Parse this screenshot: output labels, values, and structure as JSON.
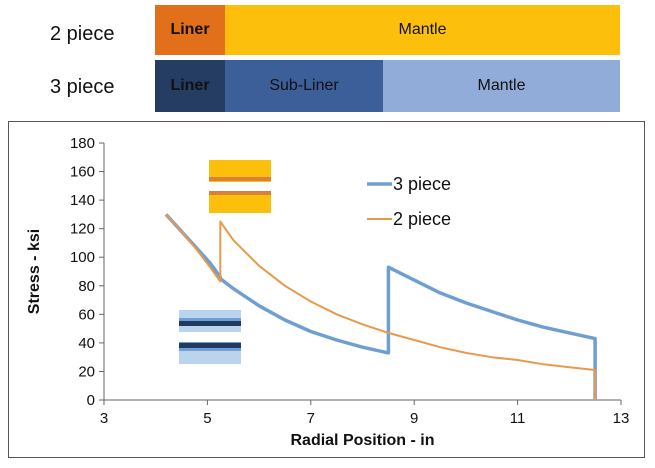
{
  "diagram": {
    "rows": [
      {
        "label": "2 piece",
        "segments": [
          {
            "label": "Liner",
            "color": "#e2701a",
            "bold": true
          },
          {
            "label": "Mantle",
            "color": "#fbbf0c",
            "bold": false
          }
        ]
      },
      {
        "label": "3 piece",
        "segments": [
          {
            "label": "Liner",
            "color": "#253d63",
            "bold": true
          },
          {
            "label": "Sub-Liner",
            "color": "#3d5f99",
            "bold": false
          },
          {
            "label": "Mantle",
            "color": "#91acd8",
            "bold": false
          }
        ]
      }
    ]
  },
  "chart_data": {
    "type": "line",
    "xlabel": "Radial Position - in",
    "ylabel": "Stress - ksi",
    "xlim": [
      3,
      13
    ],
    "ylim": [
      0,
      180
    ],
    "xticks": [
      3,
      5,
      7,
      9,
      11,
      13
    ],
    "yticks": [
      0,
      20,
      40,
      60,
      80,
      100,
      120,
      140,
      160,
      180
    ],
    "grid": false,
    "legend_position": "top-right",
    "series": [
      {
        "name": "3 piece",
        "color": "#6f9fd1",
        "x": [
          4.2,
          4.5,
          4.8,
          5.05,
          5.25,
          5.25,
          5.5,
          6.0,
          6.5,
          7.0,
          7.5,
          8.0,
          8.5,
          8.5,
          9.0,
          9.5,
          10.0,
          10.5,
          11.0,
          11.5,
          12.0,
          12.5,
          12.5
        ],
        "y": [
          130,
          118,
          106,
          96,
          86,
          85,
          78,
          66,
          56,
          48,
          42,
          37,
          33,
          93,
          84,
          75,
          68,
          62,
          56,
          51,
          47,
          43,
          0
        ]
      },
      {
        "name": "2 piece",
        "color": "#e89a4c",
        "x": [
          4.2,
          4.5,
          4.8,
          5.05,
          5.25,
          5.25,
          5.5,
          6.0,
          6.5,
          7.0,
          7.5,
          8.0,
          8.5,
          9.0,
          9.5,
          10.0,
          10.5,
          11.0,
          11.5,
          12.0,
          12.5,
          12.5
        ],
        "y": [
          130,
          118,
          105,
          93,
          83,
          125,
          112,
          94,
          80,
          69,
          60,
          53,
          47,
          42,
          37,
          33,
          30,
          28,
          25,
          23,
          21,
          0
        ]
      }
    ]
  },
  "insets": {
    "two_piece_colors": {
      "outer": "#fbbf0c",
      "band": "#d9813b"
    },
    "three_piece_colors": {
      "outer": "#bcd3ee",
      "mid": "#6f9fd1",
      "band": "#1f3a63"
    }
  }
}
